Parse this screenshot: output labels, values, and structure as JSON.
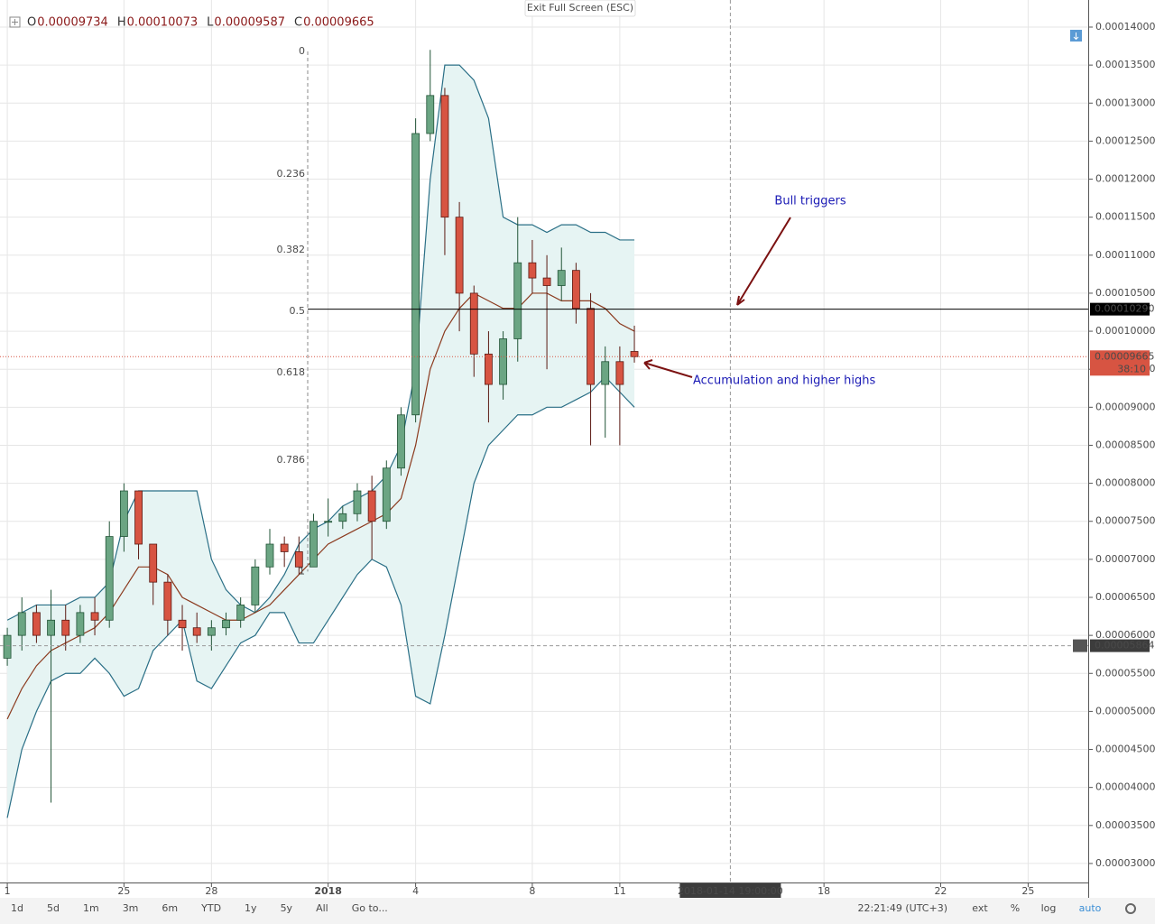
{
  "chart_data": {
    "type": "candlestick",
    "ohlc_header": [
      {
        "label": "O",
        "value": 9.734e-05
      },
      {
        "label": "H",
        "value": 0.00010073
      },
      {
        "label": "L",
        "value": 9.587e-05
      },
      {
        "label": "C",
        "value": 9.665e-05
      }
    ],
    "x": [
      0,
      0.5,
      1,
      1.5,
      2,
      2.5,
      3,
      3.5,
      4,
      4.5,
      5,
      5.5,
      6,
      6.5,
      7,
      7.5,
      8,
      8.5,
      9,
      9.5,
      10,
      10.5,
      11,
      11.5,
      12,
      12.5,
      13,
      13.5,
      14,
      14.5,
      15,
      15.5,
      16,
      16.5,
      17,
      17.5,
      18,
      18.5,
      19,
      19.5,
      20,
      20.5,
      21,
      21.5
    ],
    "open": [
      5.7e-05,
      6e-05,
      6.3e-05,
      6e-05,
      6.2e-05,
      6e-05,
      6.3e-05,
      6.2e-05,
      7.3e-05,
      7.9e-05,
      7.2e-05,
      6.7e-05,
      6.2e-05,
      6.1e-05,
      6e-05,
      6.1e-05,
      6.2e-05,
      6.4e-05,
      6.9e-05,
      7.2e-05,
      7.1e-05,
      6.9e-05,
      7.5e-05,
      7.5e-05,
      7.6e-05,
      7.9e-05,
      7.5e-05,
      8.2e-05,
      8.9e-05,
      0.000126,
      0.000131,
      0.000115,
      0.000105,
      9.7e-05,
      9.3e-05,
      9.9e-05,
      0.000109,
      0.000107,
      0.000106,
      0.000108,
      0.000103,
      9.3e-05,
      9.6e-05,
      9.734e-05
    ],
    "high": [
      6.1e-05,
      6.5e-05,
      6.4e-05,
      6.6e-05,
      6.4e-05,
      6.4e-05,
      6.5e-05,
      7.5e-05,
      8e-05,
      7.9e-05,
      7.2e-05,
      6.8e-05,
      6.4e-05,
      6.3e-05,
      6.2e-05,
      6.3e-05,
      6.5e-05,
      7e-05,
      7.4e-05,
      7.3e-05,
      7.3e-05,
      7.6e-05,
      7.8e-05,
      7.7e-05,
      8e-05,
      8.1e-05,
      8.3e-05,
      9e-05,
      0.000128,
      0.000137,
      0.000132,
      0.000117,
      0.000106,
      0.0001,
      0.0001,
      0.000115,
      0.000112,
      0.00011,
      0.000111,
      0.000109,
      0.000105,
      9.8e-05,
      9.8e-05,
      0.00010073
    ],
    "low": [
      5.6e-05,
      5.8e-05,
      5.9e-05,
      3.8e-05,
      5.8e-05,
      5.9e-05,
      6e-05,
      6.1e-05,
      7.1e-05,
      7e-05,
      6.4e-05,
      6e-05,
      5.8e-05,
      5.9e-05,
      5.8e-05,
      6e-05,
      6.1e-05,
      6.3e-05,
      6.8e-05,
      6.9e-05,
      6.8e-05,
      6.9e-05,
      7.3e-05,
      7.4e-05,
      7.5e-05,
      7e-05,
      7.4e-05,
      8.1e-05,
      8.8e-05,
      0.000125,
      0.00011,
      0.0001,
      9.4e-05,
      8.8e-05,
      9.1e-05,
      9.6e-05,
      0.000105,
      9.5e-05,
      0.000104,
      0.000101,
      8.5e-05,
      8.6e-05,
      8.5e-05,
      9.587e-05
    ],
    "close": [
      6e-05,
      6.3e-05,
      6e-05,
      6.2e-05,
      6e-05,
      6.3e-05,
      6.2e-05,
      7.3e-05,
      7.9e-05,
      7.2e-05,
      6.7e-05,
      6.2e-05,
      6.1e-05,
      6e-05,
      6.1e-05,
      6.2e-05,
      6.4e-05,
      6.9e-05,
      7.2e-05,
      7.1e-05,
      6.9e-05,
      7.5e-05,
      7.5e-05,
      7.6e-05,
      7.9e-05,
      7.5e-05,
      8.2e-05,
      8.9e-05,
      0.000126,
      0.000131,
      0.000115,
      0.000105,
      9.7e-05,
      9.3e-05,
      9.9e-05,
      0.000109,
      0.000107,
      0.000106,
      0.000108,
      0.000103,
      9.3e-05,
      9.6e-05,
      9.3e-05,
      9.665e-05
    ],
    "up_color": "#6ba583",
    "down_color": "#d75442",
    "bands": {
      "upper": [
        6.2e-05,
        6.3e-05,
        6.4e-05,
        6.4e-05,
        6.4e-05,
        6.5e-05,
        6.5e-05,
        6.7e-05,
        7.5e-05,
        7.9e-05,
        7.9e-05,
        7.9e-05,
        7.9e-05,
        7.9e-05,
        7e-05,
        6.6e-05,
        6.4e-05,
        6.3e-05,
        6.5e-05,
        6.8e-05,
        7.2e-05,
        7.4e-05,
        7.5e-05,
        7.7e-05,
        7.8e-05,
        7.9e-05,
        8.1e-05,
        8.5e-05,
        9.5e-05,
        0.00012,
        0.000135,
        0.000135,
        0.000133,
        0.000128,
        0.000115,
        0.000114,
        0.000114,
        0.000113,
        0.000114,
        0.000114,
        0.000113,
        0.000113,
        0.000112,
        0.000112
      ],
      "middle": [
        4.9e-05,
        5.3e-05,
        5.6e-05,
        5.8e-05,
        5.9e-05,
        6e-05,
        6.1e-05,
        6.3e-05,
        6.6e-05,
        6.9e-05,
        6.9e-05,
        6.8e-05,
        6.5e-05,
        6.4e-05,
        6.3e-05,
        6.2e-05,
        6.2e-05,
        6.3e-05,
        6.4e-05,
        6.6e-05,
        6.8e-05,
        7e-05,
        7.2e-05,
        7.3e-05,
        7.4e-05,
        7.5e-05,
        7.6e-05,
        7.8e-05,
        8.5e-05,
        9.5e-05,
        0.0001,
        0.000103,
        0.000105,
        0.000104,
        0.000103,
        0.000103,
        0.000105,
        0.000105,
        0.000104,
        0.000104,
        0.000104,
        0.000103,
        0.000101,
        0.0001
      ],
      "lower": [
        3.6e-05,
        4.5e-05,
        5e-05,
        5.4e-05,
        5.5e-05,
        5.5e-05,
        5.7e-05,
        5.5e-05,
        5.2e-05,
        5.3e-05,
        5.8e-05,
        6e-05,
        6.2e-05,
        5.4e-05,
        5.3e-05,
        5.6e-05,
        5.9e-05,
        6e-05,
        6.3e-05,
        6.3e-05,
        5.9e-05,
        5.9e-05,
        6.2e-05,
        6.5e-05,
        6.8e-05,
        7e-05,
        6.9e-05,
        6.4e-05,
        5.2e-05,
        5.1e-05,
        6e-05,
        7e-05,
        8e-05,
        8.5e-05,
        8.7e-05,
        8.9e-05,
        8.9e-05,
        9e-05,
        9e-05,
        9.1e-05,
        9.2e-05,
        9.4e-05,
        9.2e-05,
        9e-05
      ],
      "band_color": "#2a6f86",
      "middle_color": "#8b3a1e",
      "fill": "#e6f4f3"
    },
    "fib": {
      "high": 0.0001368,
      "low": 6.84e-05,
      "levels": [
        0,
        0.236,
        0.382,
        0.5,
        0.618,
        0.786,
        1
      ]
    },
    "xlim": [
      -0.25,
      37.06
    ],
    "xticks": [
      {
        "value": 0,
        "label": "1"
      },
      {
        "value": 4,
        "label": "25"
      },
      {
        "value": 7,
        "label": "28"
      },
      {
        "value": 11,
        "label": "2018"
      },
      {
        "value": 14,
        "label": "4"
      },
      {
        "value": 18,
        "label": "8"
      },
      {
        "value": 21,
        "label": "11"
      },
      {
        "value": 28,
        "label": "18"
      },
      {
        "value": 32,
        "label": "22"
      },
      {
        "value": 35,
        "label": "25"
      }
    ],
    "ylim": [
      2.75e-05,
      0.00014356
    ],
    "yticks": [
      {
        "value": 3e-05,
        "label": "0.00003000"
      },
      {
        "value": 3.5e-05,
        "label": "0.00003500"
      },
      {
        "value": 4e-05,
        "label": "0.00004000"
      },
      {
        "value": 4.5e-05,
        "label": "0.00004500"
      },
      {
        "value": 5e-05,
        "label": "0.00005000"
      },
      {
        "value": 5.5e-05,
        "label": "0.00005500"
      },
      {
        "value": 6e-05,
        "label": "0.00006000"
      },
      {
        "value": 6.5e-05,
        "label": "0.00006500"
      },
      {
        "value": 7e-05,
        "label": "0.00007000"
      },
      {
        "value": 7.5e-05,
        "label": "0.00007500"
      },
      {
        "value": 8e-05,
        "label": "0.00008000"
      },
      {
        "value": 8.5e-05,
        "label": "0.00008500"
      },
      {
        "value": 9e-05,
        "label": "0.00009000"
      },
      {
        "value": 9.5e-05,
        "label": "0.00009500"
      },
      {
        "value": 0.0001,
        "label": "0.00010000"
      },
      {
        "value": 0.000105,
        "label": "0.00010500"
      },
      {
        "value": 0.00011,
        "label": "0.00011000"
      },
      {
        "value": 0.000115,
        "label": "0.00011500"
      },
      {
        "value": 0.00012,
        "label": "0.00012000"
      },
      {
        "value": 0.000125,
        "label": "0.00012500"
      },
      {
        "value": 0.00013,
        "label": "0.00013000"
      },
      {
        "value": 0.000135,
        "label": "0.00013500"
      },
      {
        "value": 0.00014,
        "label": "0.00014000"
      }
    ],
    "grid": true,
    "horizontal_line": {
      "value": 0.0001029,
      "label": "0.00010290"
    },
    "last_price": 9.665e-05,
    "countdown": "38:10",
    "crosshair": {
      "price": 5.864e-05,
      "x": {
        "value": 24.79,
        "label": "2018-01-14 19:00:00"
      }
    },
    "annotations": [
      "Bull triggers",
      "Accumulation and higher highs"
    ]
  },
  "exit_button": "Exit Full Screen (ESC)",
  "toolbar": {
    "ranges": [
      "1d",
      "5d",
      "1m",
      "3m",
      "6m",
      "YTD",
      "1y",
      "5y",
      "All"
    ],
    "goto": "Go to...",
    "time": "22:21:49 (UTC+3)",
    "options": [
      "ext",
      "%",
      "log",
      "auto"
    ]
  }
}
